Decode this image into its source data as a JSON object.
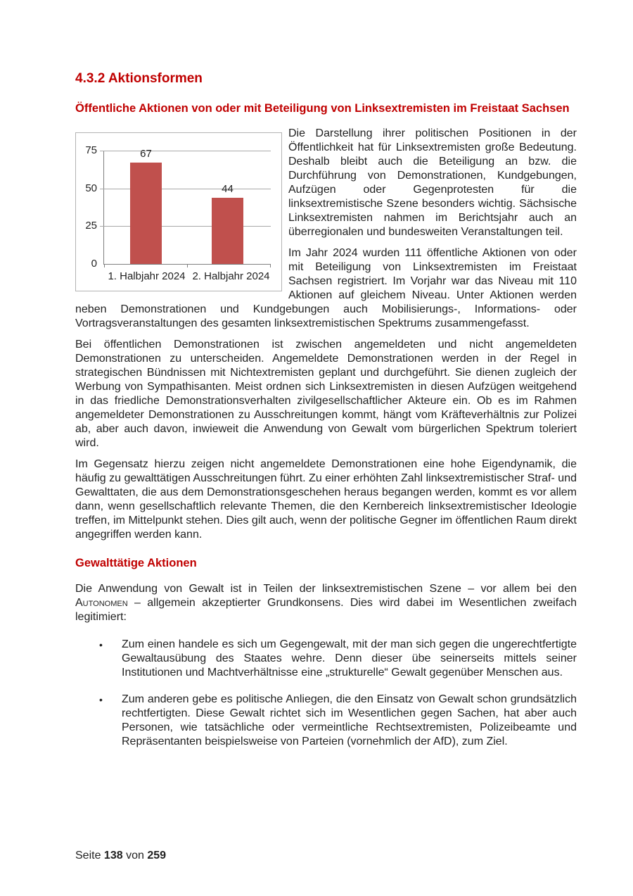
{
  "page": {
    "heading": "4.3.2 Aktionsformen",
    "subheading": "Öffentliche Aktionen von oder mit Beteiligung von Linksextremisten im Freistaat Sachsen"
  },
  "colors": {
    "heading_red": "#C00000",
    "bar_red": "#C0504D",
    "body_text": "#212121",
    "chart_border": "#B3B3B3",
    "gridline": "#A8A8A8"
  },
  "chart_data": {
    "type": "bar",
    "categories": [
      "1. Halbjahr 2024",
      "2. Halbjahr 2024"
    ],
    "values": [
      67,
      44
    ],
    "y_ticks": [
      75,
      50,
      25,
      0
    ],
    "ylim": [
      0,
      75
    ],
    "grid": true,
    "legend": false,
    "bar_color": "#C0504D",
    "title": "",
    "xlabel": "",
    "ylabel": ""
  },
  "paragraphs": {
    "p1": "Die Darstellung ihrer politischen Positionen in der Öffentlichkeit hat für Linksextremisten große Bedeutung. Deshalb bleibt auch die Beteiligung an bzw. die Durchführung von Demonstrationen, Kundgebungen, Aufzügen oder Gegenprotesten für die linksextremistische Szene besonders wichtig. Sächsische Linksextremisten nahmen im Berichtsjahr auch an überregionalen und bundesweiten Veranstaltungen teil.",
    "p2": "Im Jahr 2024 wurden 111 öffentliche Aktionen von oder mit Beteiligung von Linksextremisten im Freistaat Sachsen registriert. Im Vorjahr war das Niveau mit 110 Aktionen auf gleichem Niveau. Unter Aktionen werden neben Demonstrationen und Kundgebungen auch Mobilisierungs-, Informations- oder Vortragsveranstaltungen des gesamten linksextremistischen Spektrums zusammengefasst.",
    "p3": "Bei öffentlichen Demonstrationen ist zwischen angemeldeten und nicht angemeldeten Demonstrationen zu unterscheiden. Angemeldete Demonstrationen werden in der Regel in strategischen Bündnissen mit Nichtextremisten geplant und durchgeführt. Sie dienen zugleich der Werbung von Sympathisanten. Meist ordnen sich Linksextremisten in diesen Aufzügen weitgehend in das friedliche Demonstrationsverhalten zivilgesellschaftlicher Akteure ein. Ob es im Rahmen angemeldeter Demonstrationen zu Ausschreitungen kommt, hängt vom Kräfteverhältnis zur Polizei ab, aber auch davon, inwieweit die Anwendung von Gewalt vom bürgerlichen Spektrum toleriert wird.",
    "p4": "Im Gegensatz hierzu zeigen nicht angemeldete Demonstrationen eine hohe Eigendynamik, die häufig zu gewalttätigen Ausschreitungen führt. Zu einer erhöhten Zahl linksextremistischer Straf- und Gewalttaten, die aus dem Demonstrationsgeschehen heraus begangen werden, kommt es vor allem dann, wenn gesellschaftlich relevante Themen, die den Kernbereich linksextremistischer Ideologie treffen, im Mittelpunkt stehen. Dies gilt auch, wenn der politische Gegner im öffentlichen Raum direkt angegriffen werden kann."
  },
  "violent": {
    "heading": "Gewalttätige Aktionen",
    "intro_part1": "Die Anwendung von Gewalt ist in Teilen der linksextremistischen Szene – vor allem bei den ",
    "intro_smallcaps": "Autonomen",
    "intro_part2": " – allgemein akzeptierter Grundkonsens. Dies wird dabei im Wesentlichen zweifach legitimiert:",
    "bullets": [
      "Zum einen handele es sich um Gegengewalt, mit der man sich gegen die ungerechtfertigte Gewaltausübung des Staates wehre. Denn dieser übe seinerseits mittels seiner Institutionen und Machtverhältnisse eine „strukturelle“ Gewalt gegenüber Menschen aus.",
      "Zum anderen gebe es politische Anliegen, die den Einsatz von Gewalt schon grundsätzlich rechtfertigten. Diese Gewalt richtet sich im Wesentlichen gegen Sachen, hat aber auch Personen, wie tatsächliche oder vermeintliche Rechtsextremisten, Polizeibeamte und Repräsentanten beispielsweise von Parteien (vornehmlich der AfD), zum Ziel."
    ],
    "bullet_glyph": "•"
  },
  "footer": {
    "label_seite": "Seite",
    "page_number": "138",
    "label_von": "von",
    "total_pages": "259"
  }
}
